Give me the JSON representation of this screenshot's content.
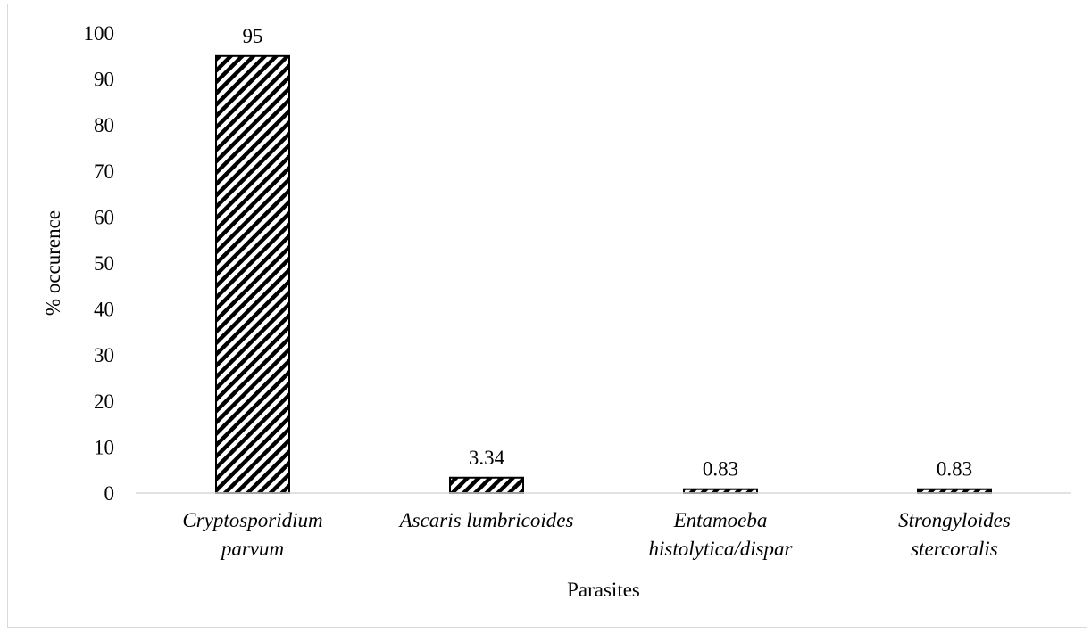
{
  "chart_data": {
    "type": "bar",
    "categories": [
      [
        "Cryptosporidium",
        "parvum"
      ],
      [
        "Ascaris lumbricoides"
      ],
      [
        "Entamoeba",
        "histolytica/dispar"
      ],
      [
        "Strongyloides",
        "stercoralis"
      ]
    ],
    "values": [
      95,
      3.34,
      0.83,
      0.83
    ],
    "data_labels": [
      "95",
      "3.34",
      "0.83",
      "0.83"
    ],
    "xlabel": "Parasites",
    "ylabel": "% occurence",
    "ylim": [
      0,
      100
    ],
    "yticks": [
      "0",
      "10",
      "20",
      "30",
      "40",
      "50",
      "60",
      "70",
      "80",
      "90",
      "100"
    ],
    "bar_fill": "diagonal-hatch",
    "colors": {
      "bar_stroke": "#000000",
      "axis_line": "#d9d9d9",
      "frame": "#d9d9d9"
    },
    "grid": false,
    "legend": "none"
  }
}
